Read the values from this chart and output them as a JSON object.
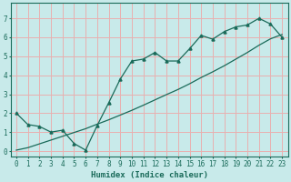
{
  "title": "",
  "xlabel": "Humidex (Indice chaleur)",
  "xlim": [
    -0.5,
    23.5
  ],
  "ylim": [
    -0.3,
    7.8
  ],
  "xticks": [
    0,
    1,
    2,
    3,
    4,
    5,
    6,
    7,
    8,
    9,
    10,
    11,
    12,
    13,
    14,
    15,
    16,
    17,
    18,
    19,
    20,
    21,
    22,
    23
  ],
  "yticks": [
    0,
    1,
    2,
    3,
    4,
    5,
    6,
    7
  ],
  "line1_x": [
    0,
    1,
    2,
    3,
    4,
    5,
    6,
    7,
    8,
    9,
    10,
    11,
    12,
    13,
    14,
    15,
    16,
    17,
    18,
    19,
    20,
    21,
    22,
    23
  ],
  "line1_y": [
    2.0,
    1.4,
    1.3,
    1.0,
    1.1,
    0.4,
    0.05,
    1.35,
    2.55,
    3.8,
    4.75,
    4.85,
    5.2,
    4.75,
    4.75,
    5.4,
    6.1,
    5.9,
    6.3,
    6.55,
    6.65,
    7.0,
    6.7,
    6.0
  ],
  "line2_x": [
    0,
    1,
    2,
    3,
    4,
    5,
    6,
    7,
    8,
    9,
    10,
    11,
    12,
    13,
    14,
    15,
    16,
    17,
    18,
    19,
    20,
    21,
    22,
    23
  ],
  "line2_y": [
    0.05,
    0.18,
    0.38,
    0.58,
    0.78,
    0.98,
    1.18,
    1.42,
    1.65,
    1.9,
    2.15,
    2.42,
    2.7,
    2.98,
    3.25,
    3.55,
    3.88,
    4.18,
    4.5,
    4.85,
    5.2,
    5.58,
    5.92,
    6.15
  ],
  "line_color": "#1a6b5a",
  "bg_color": "#c8eaea",
  "grid_color": "#e8b0b0",
  "axes_color": "#1a6b5a",
  "label_fontsize": 6.5,
  "tick_fontsize": 5.5
}
